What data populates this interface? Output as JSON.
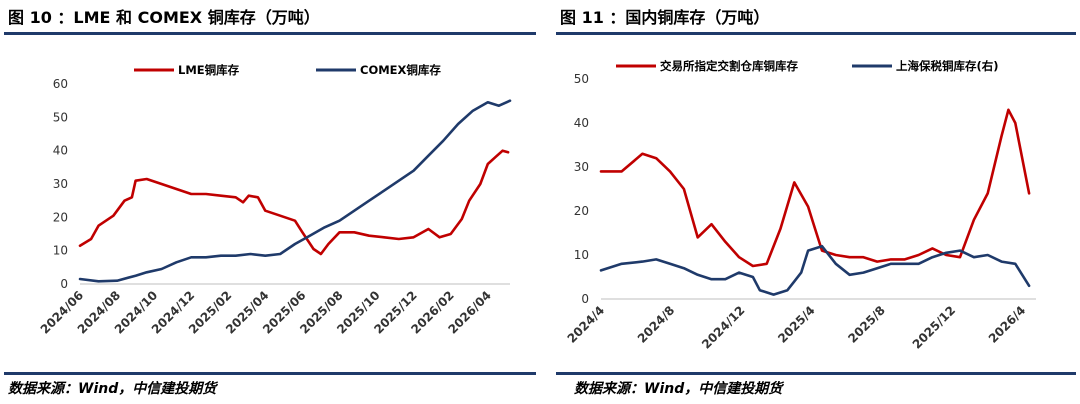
{
  "left": {
    "title": "图 10 ：LME 和 COMEX 铜库存（万吨）",
    "source": "数据来源：Wind，中信建投期货",
    "colors": {
      "lme": "#c00000",
      "comex": "#1f3a6a"
    },
    "chart_data": {
      "type": "line",
      "title": "图 10 ：LME 和 COMEX 铜库存（万吨）",
      "ylim": [
        0,
        60
      ],
      "yticks": [
        "0",
        "10",
        "20",
        "30",
        "40",
        "50",
        "60"
      ],
      "xticks": [
        "2024/06",
        "2024/08",
        "2024/10",
        "2024/12",
        "2025/02",
        "2025/04",
        "2025/06",
        "2025/08",
        "2025/10",
        "2025/12",
        "2026/02",
        "2026/04"
      ],
      "xrange": [
        0,
        11.6
      ],
      "series": [
        {
          "name": "LME铜库存",
          "color": "#c00000",
          "x": [
            0,
            0.3,
            0.5,
            0.9,
            1.2,
            1.4,
            1.5,
            1.8,
            2.2,
            2.6,
            3.0,
            3.4,
            3.8,
            4.2,
            4.4,
            4.55,
            4.8,
            5.0,
            5.4,
            5.8,
            6.0,
            6.3,
            6.5,
            6.7,
            7.0,
            7.4,
            7.8,
            8.2,
            8.6,
            9.0,
            9.4,
            9.7,
            10.0,
            10.3,
            10.5,
            10.8,
            11.0,
            11.2,
            11.4,
            11.55
          ],
          "values": [
            11.5,
            13.5,
            17.5,
            20.5,
            25,
            26,
            31,
            31.5,
            30,
            28.5,
            27,
            27,
            26.5,
            26,
            24.5,
            26.5,
            26,
            22,
            20.5,
            19,
            15.5,
            10.5,
            9,
            12,
            15.5,
            15.5,
            14.5,
            14,
            13.5,
            14,
            16.5,
            14,
            15,
            19.5,
            25,
            30,
            36,
            38,
            40,
            39.5
          ]
        },
        {
          "name": "COMEX铜库存",
          "color": "#1f3a6a",
          "x": [
            0,
            0.5,
            1.0,
            1.5,
            1.8,
            2.2,
            2.6,
            3.0,
            3.4,
            3.8,
            4.2,
            4.6,
            5.0,
            5.4,
            5.8,
            6.2,
            6.6,
            7.0,
            7.4,
            7.8,
            8.2,
            8.6,
            9.0,
            9.4,
            9.8,
            10.2,
            10.6,
            11.0,
            11.3,
            11.6
          ],
          "values": [
            1.5,
            0.8,
            1,
            2.5,
            3.5,
            4.5,
            6.5,
            8,
            8,
            8.5,
            8.5,
            9,
            8.5,
            9,
            12,
            14.5,
            17,
            19,
            22,
            25,
            28,
            31,
            34,
            38.5,
            43,
            48,
            52,
            54.5,
            53.5,
            55
          ]
        }
      ]
    }
  },
  "right": {
    "title": "图 11 ：国内铜库存（万吨）",
    "source": "数据来源：Wind，中信建投期货",
    "colors": {
      "exchange": "#c00000",
      "bonded": "#1f3a6a"
    },
    "chart_data": {
      "type": "line",
      "title": "图 11 ：国内铜库存（万吨）",
      "ylim": [
        0,
        50
      ],
      "yticks": [
        "0",
        "10",
        "20",
        "30",
        "40",
        "50"
      ],
      "xticks": [
        "2024/4",
        "2024/8",
        "2024/12",
        "2025/4",
        "2025/8",
        "2025/12",
        "2026/4"
      ],
      "xrange": [
        0,
        6.3
      ],
      "series": [
        {
          "name": "交易所指定交割仓库铜库存",
          "color": "#c00000",
          "x": [
            0,
            0.3,
            0.6,
            0.8,
            1.0,
            1.2,
            1.4,
            1.6,
            1.8,
            2.0,
            2.2,
            2.4,
            2.6,
            2.8,
            3.0,
            3.1,
            3.2,
            3.4,
            3.6,
            3.8,
            4.0,
            4.2,
            4.4,
            4.6,
            4.8,
            5.0,
            5.2,
            5.4,
            5.6,
            5.8,
            5.9,
            6.0,
            6.2
          ],
          "values": [
            29,
            29,
            33,
            32,
            29,
            25,
            14,
            17,
            13,
            9.5,
            7.5,
            8,
            16,
            26.5,
            21,
            16,
            11,
            10,
            9.5,
            9.5,
            8.5,
            9,
            9,
            10,
            11.5,
            10,
            9.5,
            18,
            24,
            37,
            43,
            40,
            24
          ]
        },
        {
          "name": "上海保税铜库存(右)",
          "color": "#1f3a6a",
          "x": [
            0,
            0.3,
            0.6,
            0.8,
            1.0,
            1.2,
            1.4,
            1.6,
            1.8,
            2.0,
            2.2,
            2.3,
            2.5,
            2.7,
            2.8,
            2.9,
            3.0,
            3.2,
            3.4,
            3.6,
            3.8,
            4.0,
            4.2,
            4.4,
            4.6,
            4.8,
            5.0,
            5.2,
            5.4,
            5.6,
            5.8,
            6.0,
            6.2
          ],
          "values": [
            6.5,
            8,
            8.5,
            9,
            8,
            7,
            5.5,
            4.5,
            4.5,
            6,
            5,
            2,
            1,
            2,
            4,
            6,
            11,
            12,
            8,
            5.5,
            6,
            7,
            8,
            8,
            8,
            9.5,
            10.5,
            11,
            9.5,
            10,
            8.5,
            8,
            3
          ]
        }
      ]
    }
  }
}
